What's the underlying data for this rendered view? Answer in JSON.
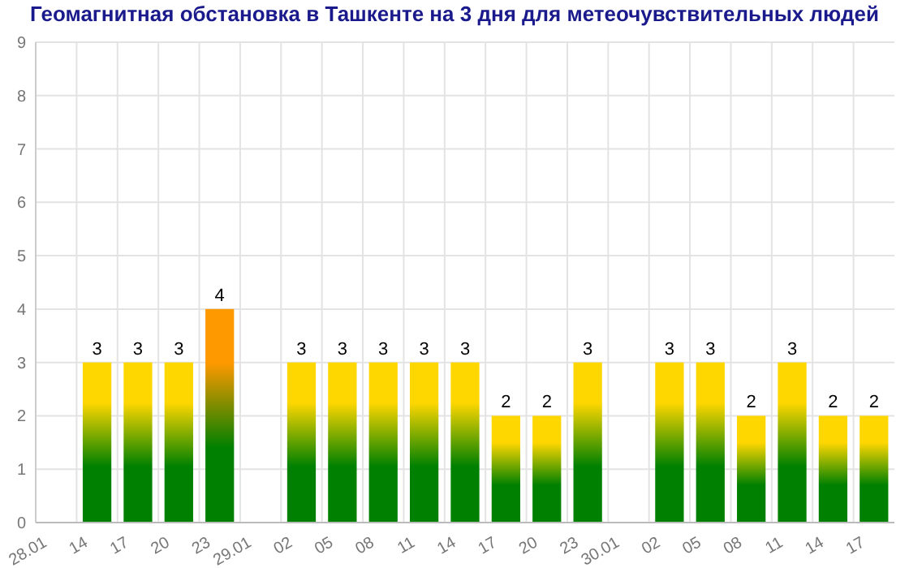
{
  "chart_data": {
    "type": "bar",
    "title": "Геомагнитная обстановка в Ташкенте на 3 дня для метеочувствительных людей",
    "categories": [
      "28.01",
      "14",
      "17",
      "20",
      "23",
      "29.01",
      "02",
      "05",
      "08",
      "11",
      "14",
      "17",
      "20",
      "23",
      "30.01",
      "02",
      "05",
      "08",
      "11",
      "14",
      "17"
    ],
    "values": [
      null,
      3,
      3,
      3,
      4,
      null,
      3,
      3,
      3,
      3,
      3,
      2,
      2,
      3,
      null,
      3,
      3,
      2,
      3,
      2,
      2
    ],
    "colors": [
      null,
      "#ffd700",
      "#ffd700",
      "#ffd700",
      "#ff9900",
      null,
      "#ffd700",
      "#ffd700",
      "#ffd700",
      "#ffd700",
      "#ffd700",
      "#ffd700",
      "#ffd700",
      "#ffd700",
      null,
      "#ffd700",
      "#ffd700",
      "#ffd700",
      "#ffd700",
      "#ffd700",
      "#ffd700"
    ],
    "ylim": [
      0,
      9
    ],
    "yticks": [
      0,
      1,
      2,
      3,
      4,
      5,
      6,
      7,
      8,
      9
    ],
    "grid": true,
    "data_labels": true
  }
}
